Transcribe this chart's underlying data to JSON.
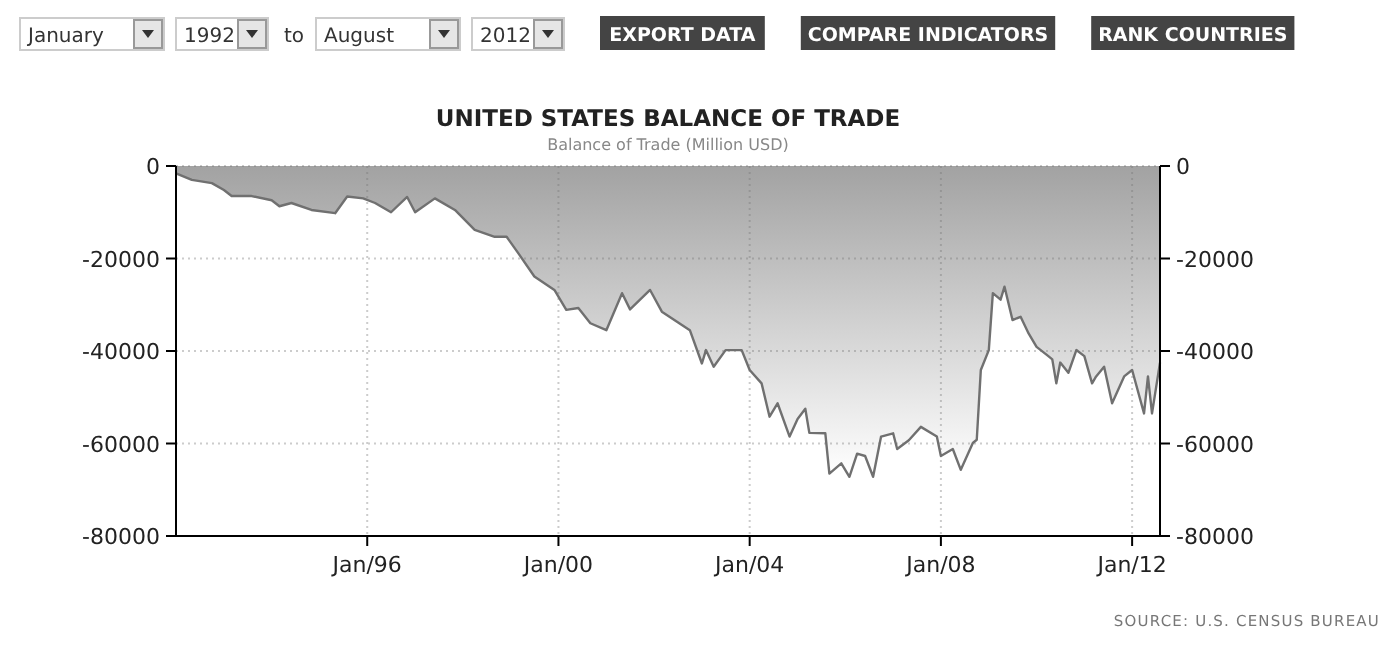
{
  "chart_data": {
    "type": "area",
    "title": "UNITED STATES BALANCE OF TRADE",
    "subtitle": "Balance of Trade (Million USD)",
    "annotations": [
      "January",
      "1992",
      "to",
      "August",
      "2012",
      "EXPORT DATA",
      "COMPARE INDICATORS",
      "RANK COUNTRIES",
      "SOURCE: U.S. CENSUS BUREAU"
    ],
    "xlim": [
      "1992-01",
      "2012-08"
    ],
    "xticks": [
      {
        "value": "1996-01",
        "label": "Jan/96"
      },
      {
        "value": "2000-01",
        "label": "Jan/00"
      },
      {
        "value": "2004-01",
        "label": "Jan/04"
      },
      {
        "value": "2008-01",
        "label": "Jan/08"
      },
      {
        "value": "2012-01",
        "label": "Jan/12"
      }
    ],
    "ylim": [
      -80000,
      0
    ],
    "yticks": [
      -80000,
      -60000,
      -40000,
      -20000,
      0
    ],
    "y2lim": [
      -80000,
      0
    ],
    "y2ticks": [
      -80000,
      -60000,
      -40000,
      -20000,
      0
    ],
    "grid": true,
    "x": [
      "1992-01",
      "1992-05",
      "1992-10",
      "1993-01",
      "1993-03",
      "1993-08",
      "1994-01",
      "1994-03",
      "1994-06",
      "1994-11",
      "1995-05",
      "1995-08",
      "1995-12",
      "1996-03",
      "1996-07",
      "1996-11",
      "1997-01",
      "1997-06",
      "1997-11",
      "1998-04",
      "1998-09",
      "1998-12",
      "1999-03",
      "1999-07",
      "1999-12",
      "2000-03",
      "2000-06",
      "2000-09",
      "2001-01",
      "2001-05",
      "2001-07",
      "2001-12",
      "2002-03",
      "2002-10",
      "2003-01",
      "2003-02",
      "2003-04",
      "2003-07",
      "2003-11",
      "2004-01",
      "2004-04",
      "2004-06",
      "2004-08",
      "2004-11",
      "2005-01",
      "2005-03",
      "2005-04",
      "2005-08",
      "2005-09",
      "2005-12",
      "2006-02",
      "2006-04",
      "2006-06",
      "2006-08",
      "2006-10",
      "2007-01",
      "2007-02",
      "2007-05",
      "2007-08",
      "2007-12",
      "2008-01",
      "2008-04",
      "2008-06",
      "2008-09",
      "2008-10",
      "2008-11",
      "2009-01",
      "2009-02",
      "2009-04",
      "2009-05",
      "2009-07",
      "2009-09",
      "2009-11",
      "2010-01",
      "2010-04",
      "2010-05",
      "2010-06",
      "2010-07",
      "2010-09",
      "2010-11",
      "2011-01",
      "2011-03",
      "2011-04",
      "2011-06",
      "2011-08",
      "2011-11",
      "2012-01",
      "2012-04",
      "2012-05",
      "2012-06",
      "2012-08"
    ],
    "series": [
      {
        "color": "#707070",
        "values": [
          -1600,
          -3000,
          -3700,
          -5200,
          -6500,
          -6500,
          -7400,
          -8700,
          -8000,
          -9500,
          -10200,
          -6600,
          -7000,
          -8000,
          -10000,
          -6700,
          -10000,
          -7000,
          -9500,
          -13800,
          -15300,
          -15300,
          -18900,
          -23900,
          -26800,
          -31100,
          -30700,
          -34000,
          -35500,
          -27500,
          -31000,
          -26800,
          -31500,
          -35500,
          -42700,
          -39800,
          -43400,
          -39800,
          -39800,
          -44100,
          -47000,
          -54200,
          -51300,
          -58500,
          -54700,
          -52500,
          -57700,
          -57800,
          -66500,
          -64300,
          -67200,
          -62200,
          -62700,
          -67200,
          -58500,
          -57800,
          -61200,
          -59300,
          -56400,
          -58500,
          -62700,
          -61200,
          -65700,
          -59900,
          -59200,
          -44100,
          -39800,
          -27500,
          -28900,
          -26100,
          -33300,
          -32600,
          -36200,
          -39100,
          -41100,
          -41800,
          -47000,
          -42500,
          -44700,
          -39800,
          -41100,
          -47000,
          -45500,
          -43400,
          -51300,
          -45500,
          -44100,
          -53500,
          -45500,
          -53500,
          -42500
        ]
      }
    ]
  }
}
